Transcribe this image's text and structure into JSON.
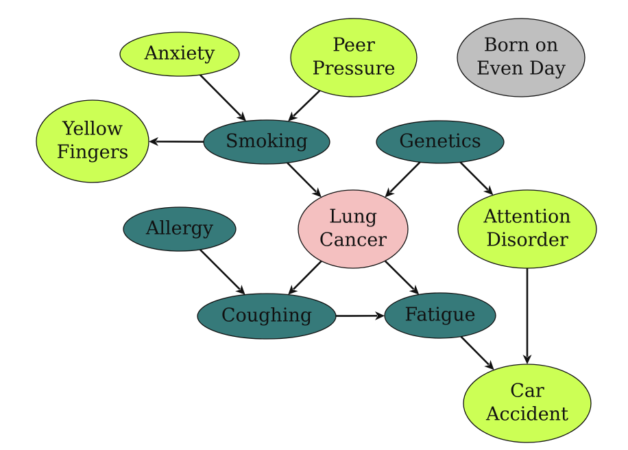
{
  "colors": {
    "observed": "#ccff55",
    "latent": "#367a7a",
    "target": "#f4c0c0",
    "irrelevant": "#bfbfbf",
    "edge": "#111111"
  },
  "nodes": [
    {
      "id": "anxiety",
      "kind": "observed",
      "lines": [
        "Anxiety"
      ]
    },
    {
      "id": "peer-pressure",
      "kind": "observed",
      "lines": [
        "Peer",
        "Pressure"
      ]
    },
    {
      "id": "born-on-even-day",
      "kind": "irrelevant",
      "lines": [
        "Born on",
        "Even Day"
      ]
    },
    {
      "id": "yellow-fingers",
      "kind": "observed",
      "lines": [
        "Yellow",
        "Fingers"
      ]
    },
    {
      "id": "smoking",
      "kind": "latent",
      "lines": [
        "Smoking"
      ]
    },
    {
      "id": "genetics",
      "kind": "latent",
      "lines": [
        "Genetics"
      ]
    },
    {
      "id": "lung-cancer",
      "kind": "target",
      "lines": [
        "Lung",
        "Cancer"
      ]
    },
    {
      "id": "attention-disorder",
      "kind": "observed",
      "lines": [
        "Attention",
        "Disorder"
      ]
    },
    {
      "id": "allergy",
      "kind": "latent",
      "lines": [
        "Allergy"
      ]
    },
    {
      "id": "coughing",
      "kind": "latent",
      "lines": [
        "Coughing"
      ]
    },
    {
      "id": "fatigue",
      "kind": "latent",
      "lines": [
        "Fatigue"
      ]
    },
    {
      "id": "car-accident",
      "kind": "observed",
      "lines": [
        "Car",
        "Accident"
      ]
    }
  ],
  "edges": [
    {
      "from": "anxiety",
      "to": "smoking"
    },
    {
      "from": "peer-pressure",
      "to": "smoking"
    },
    {
      "from": "smoking",
      "to": "yellow-fingers"
    },
    {
      "from": "smoking",
      "to": "lung-cancer"
    },
    {
      "from": "genetics",
      "to": "lung-cancer"
    },
    {
      "from": "genetics",
      "to": "attention-disorder"
    },
    {
      "from": "allergy",
      "to": "coughing"
    },
    {
      "from": "lung-cancer",
      "to": "coughing"
    },
    {
      "from": "lung-cancer",
      "to": "fatigue"
    },
    {
      "from": "coughing",
      "to": "fatigue"
    },
    {
      "from": "fatigue",
      "to": "car-accident"
    },
    {
      "from": "attention-disorder",
      "to": "car-accident"
    }
  ]
}
